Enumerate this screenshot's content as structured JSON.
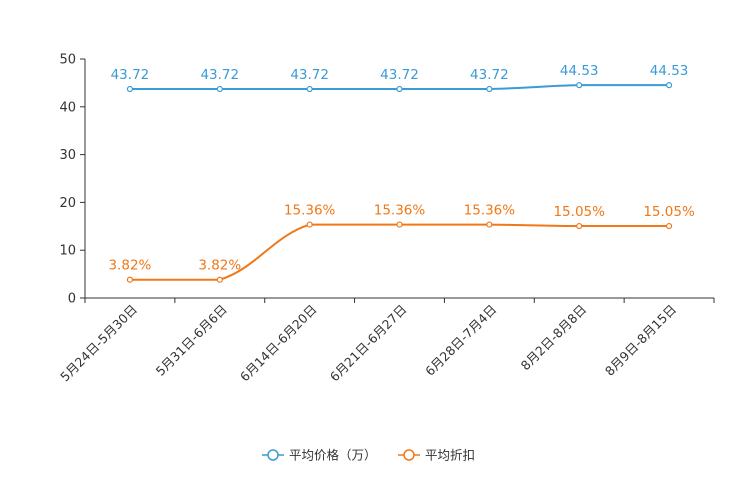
{
  "chart_data": {
    "type": "line",
    "title": "",
    "xlabel": "",
    "ylabel": "",
    "categories": [
      "5月24日-5月30日",
      "5月31日-6月6日",
      "6月14日-6月20日",
      "6月21日-6月27日",
      "6月28日-7月4日",
      "8月2日-8月8日",
      "8月9日-8月15日"
    ],
    "ylim": [
      0,
      50
    ],
    "yticks": [
      0,
      10,
      20,
      30,
      40,
      50
    ],
    "grid": false,
    "legend_position": "bottom-center",
    "series": [
      {
        "name": "平均价格（万）",
        "color": "#3a9bd5",
        "values": [
          43.72,
          43.72,
          43.72,
          43.72,
          43.72,
          44.53,
          44.53
        ],
        "labels": [
          "43.72",
          "43.72",
          "43.72",
          "43.72",
          "43.72",
          "44.53",
          "44.53"
        ]
      },
      {
        "name": "平均折扣",
        "color": "#f07818",
        "values": [
          3.82,
          3.82,
          15.36,
          15.36,
          15.36,
          15.05,
          15.05
        ],
        "labels": [
          "3.82%",
          "3.82%",
          "15.36%",
          "15.36%",
          "15.36%",
          "15.05%",
          "15.05%"
        ]
      }
    ]
  }
}
